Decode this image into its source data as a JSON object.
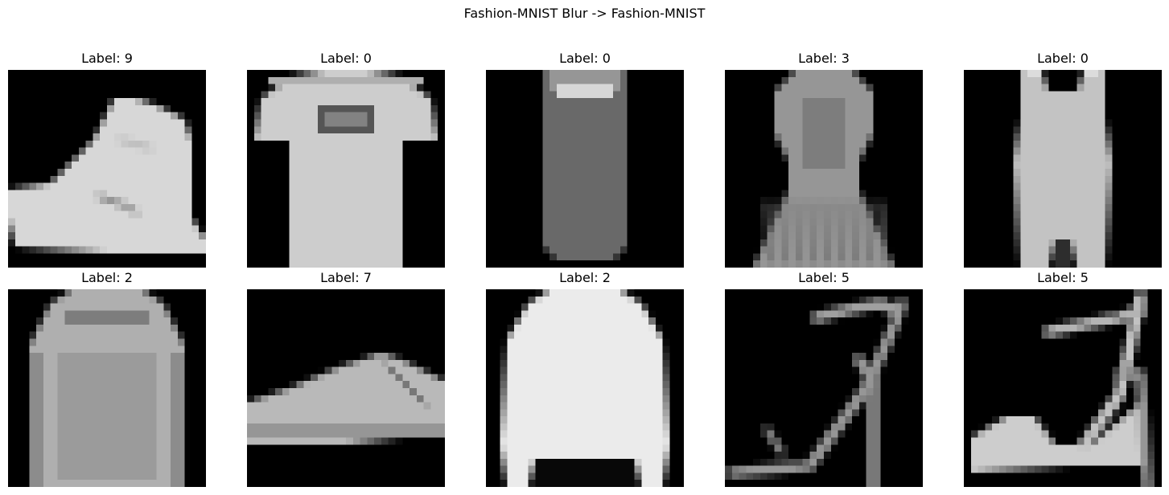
{
  "figure": {
    "suptitle": "Fashion-MNIST Blur -> Fashion-MNIST",
    "rows": 2,
    "cols": 5,
    "colormap": "gray",
    "background": "#000000"
  },
  "panels": [
    {
      "title": "Label: 9",
      "label": 9,
      "content": "ankle-boot"
    },
    {
      "title": "Label: 0",
      "label": 0,
      "content": "t-shirt"
    },
    {
      "title": "Label: 0",
      "label": 0,
      "content": "t-shirt-narrow"
    },
    {
      "title": "Label: 3",
      "label": 3,
      "content": "dress"
    },
    {
      "title": "Label: 0",
      "label": 0,
      "content": "tank-top"
    },
    {
      "title": "Label: 2",
      "label": 2,
      "content": "pullover"
    },
    {
      "title": "Label: 7",
      "label": 7,
      "content": "sneaker"
    },
    {
      "title": "Label: 2",
      "label": 2,
      "content": "pullover-wide"
    },
    {
      "title": "Label: 5",
      "label": 5,
      "content": "sandal"
    },
    {
      "title": "Label: 5",
      "label": 5,
      "content": "sandal-heel"
    }
  ]
}
